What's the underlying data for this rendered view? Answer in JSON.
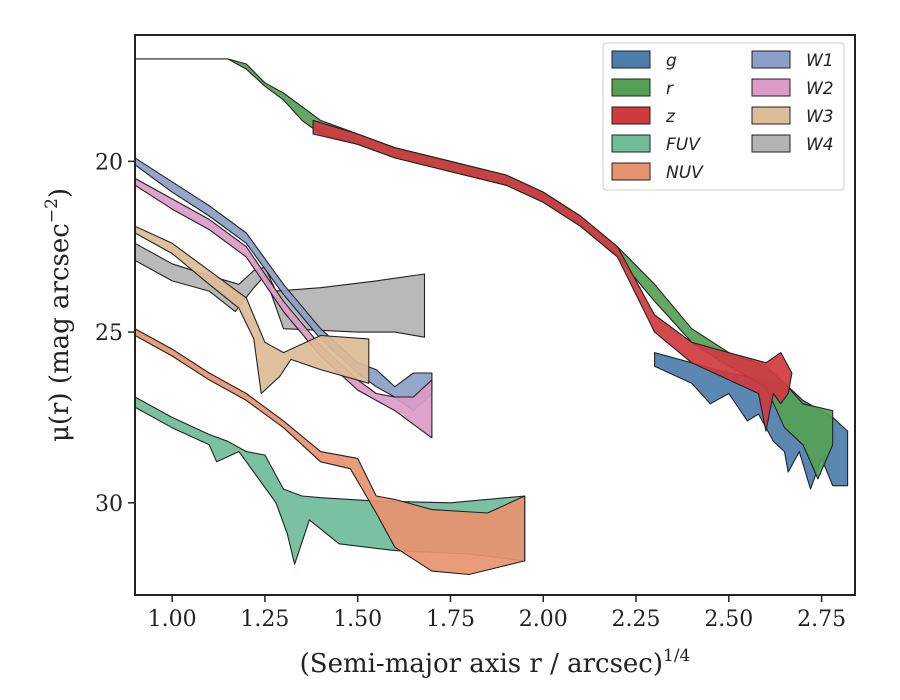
{
  "chart_data": {
    "type": "area",
    "xlabel": "(Semi-major axis r / arcsec)",
    "xlabel_superscript": "1/4",
    "ylabel": "μ(r) (mag arcsec",
    "ylabel_superscript": "−2",
    "ylabel_suffix": ")",
    "xlim": [
      0.9,
      2.84
    ],
    "ylim": [
      32.7,
      16.3
    ],
    "y_inverted": true,
    "x_ticks": [
      1.0,
      1.25,
      1.5,
      1.75,
      2.0,
      2.25,
      2.5,
      2.75
    ],
    "x_tick_labels": [
      "1.00",
      "1.25",
      "1.50",
      "1.75",
      "2.00",
      "2.25",
      "2.50",
      "2.75"
    ],
    "y_ticks": [
      20,
      25,
      30
    ],
    "y_tick_labels": [
      "20",
      "25",
      "30"
    ],
    "grid": false,
    "legend_position": "top-right",
    "legend_columns": 2,
    "series": [
      {
        "name": "W4",
        "color": "#b3b3b3",
        "upper": [
          [
            0.9,
            22.4
          ],
          [
            1.0,
            23.0
          ],
          [
            1.1,
            23.35
          ],
          [
            1.18,
            23.6
          ],
          [
            1.22,
            23.2
          ],
          [
            1.25,
            23.1
          ],
          [
            1.28,
            23.8
          ],
          [
            1.4,
            23.7
          ],
          [
            1.55,
            23.5
          ],
          [
            1.68,
            23.3
          ]
        ],
        "lower": [
          [
            0.9,
            22.9
          ],
          [
            1.0,
            23.5
          ],
          [
            1.1,
            23.8
          ],
          [
            1.17,
            24.4
          ],
          [
            1.22,
            23.7
          ],
          [
            1.25,
            23.35
          ],
          [
            1.3,
            24.9
          ],
          [
            1.5,
            25.0
          ],
          [
            1.6,
            25.0
          ],
          [
            1.68,
            25.15
          ]
        ]
      },
      {
        "name": "g",
        "color": "#4c7eab",
        "upper": [
          [
            2.3,
            25.6
          ],
          [
            2.4,
            25.9
          ],
          [
            2.5,
            26.2
          ],
          [
            2.6,
            26.4
          ],
          [
            2.65,
            26.5
          ],
          [
            2.7,
            27.0
          ],
          [
            2.78,
            27.5
          ],
          [
            2.82,
            27.9
          ]
        ],
        "lower": [
          [
            2.3,
            26.0
          ],
          [
            2.4,
            26.5
          ],
          [
            2.45,
            27.1
          ],
          [
            2.5,
            26.8
          ],
          [
            2.55,
            27.6
          ],
          [
            2.58,
            27.4
          ],
          [
            2.62,
            28.2
          ],
          [
            2.65,
            28.5
          ],
          [
            2.66,
            29.1
          ],
          [
            2.69,
            28.5
          ],
          [
            2.72,
            29.6
          ],
          [
            2.75,
            28.7
          ],
          [
            2.78,
            29.5
          ],
          [
            2.82,
            29.5
          ]
        ]
      },
      {
        "name": "r",
        "color": "#55a055",
        "upper": [
          [
            0.9,
            17.0
          ],
          [
            1.05,
            17.0
          ],
          [
            1.15,
            17.0
          ],
          [
            1.2,
            17.15
          ],
          [
            1.25,
            17.7
          ],
          [
            1.3,
            18.0
          ],
          [
            1.35,
            18.4
          ],
          [
            1.4,
            18.8
          ],
          [
            1.5,
            19.2
          ],
          [
            1.6,
            19.6
          ],
          [
            1.75,
            20.0
          ],
          [
            1.9,
            20.4
          ],
          [
            2.0,
            20.9
          ],
          [
            2.1,
            21.6
          ],
          [
            2.2,
            22.5
          ],
          [
            2.3,
            23.6
          ],
          [
            2.4,
            24.9
          ],
          [
            2.5,
            25.6
          ],
          [
            2.6,
            26.0
          ],
          [
            2.65,
            26.5
          ],
          [
            2.7,
            27.1
          ],
          [
            2.78,
            27.3
          ]
        ],
        "lower": [
          [
            0.9,
            17.0
          ],
          [
            1.05,
            17.0
          ],
          [
            1.15,
            17.0
          ],
          [
            1.2,
            17.3
          ],
          [
            1.25,
            17.8
          ],
          [
            1.3,
            18.2
          ],
          [
            1.35,
            18.8
          ],
          [
            1.4,
            19.2
          ],
          [
            1.5,
            19.5
          ],
          [
            1.6,
            19.9
          ],
          [
            1.75,
            20.3
          ],
          [
            1.9,
            20.7
          ],
          [
            2.0,
            21.2
          ],
          [
            2.1,
            21.9
          ],
          [
            2.2,
            22.8
          ],
          [
            2.3,
            24.1
          ],
          [
            2.4,
            25.3
          ],
          [
            2.5,
            26.0
          ],
          [
            2.6,
            26.6
          ],
          [
            2.65,
            27.8
          ],
          [
            2.7,
            28.3
          ],
          [
            2.74,
            29.3
          ],
          [
            2.78,
            28.3
          ]
        ]
      },
      {
        "name": "z",
        "color": "#cf3a3f",
        "upper": [
          [
            1.38,
            18.8
          ],
          [
            1.5,
            19.2
          ],
          [
            1.6,
            19.6
          ],
          [
            1.75,
            20.0
          ],
          [
            1.9,
            20.4
          ],
          [
            2.0,
            20.9
          ],
          [
            2.1,
            21.6
          ],
          [
            2.2,
            22.5
          ],
          [
            2.3,
            24.5
          ],
          [
            2.4,
            25.3
          ],
          [
            2.5,
            25.6
          ],
          [
            2.6,
            25.9
          ],
          [
            2.64,
            25.6
          ],
          [
            2.67,
            26.2
          ]
        ],
        "lower": [
          [
            1.38,
            19.2
          ],
          [
            1.5,
            19.5
          ],
          [
            1.6,
            19.9
          ],
          [
            1.75,
            20.3
          ],
          [
            1.9,
            20.7
          ],
          [
            2.0,
            21.2
          ],
          [
            2.1,
            21.9
          ],
          [
            2.2,
            22.8
          ],
          [
            2.3,
            25.0
          ],
          [
            2.4,
            25.9
          ],
          [
            2.5,
            26.4
          ],
          [
            2.58,
            26.8
          ],
          [
            2.6,
            27.9
          ],
          [
            2.62,
            26.8
          ],
          [
            2.64,
            27.1
          ],
          [
            2.66,
            26.8
          ],
          [
            2.67,
            26.2
          ]
        ]
      },
      {
        "name": "W1",
        "color": "#8b9fc7",
        "upper": [
          [
            0.9,
            19.9
          ],
          [
            1.0,
            20.6
          ],
          [
            1.1,
            21.3
          ],
          [
            1.2,
            22.1
          ],
          [
            1.3,
            23.6
          ],
          [
            1.4,
            24.9
          ],
          [
            1.5,
            25.9
          ],
          [
            1.55,
            26.1
          ],
          [
            1.6,
            26.6
          ],
          [
            1.65,
            26.2
          ],
          [
            1.7,
            26.2
          ]
        ],
        "lower": [
          [
            0.9,
            20.1
          ],
          [
            1.0,
            20.9
          ],
          [
            1.1,
            21.6
          ],
          [
            1.2,
            22.4
          ],
          [
            1.3,
            23.9
          ],
          [
            1.4,
            25.2
          ],
          [
            1.5,
            26.2
          ],
          [
            1.55,
            26.6
          ],
          [
            1.6,
            26.9
          ],
          [
            1.65,
            27.3
          ],
          [
            1.7,
            26.8
          ]
        ]
      },
      {
        "name": "W2",
        "color": "#dc9ac7",
        "upper": [
          [
            0.9,
            20.5
          ],
          [
            1.0,
            21.1
          ],
          [
            1.1,
            21.7
          ],
          [
            1.2,
            22.5
          ],
          [
            1.3,
            24.1
          ],
          [
            1.4,
            25.4
          ],
          [
            1.5,
            26.4
          ],
          [
            1.55,
            26.8
          ],
          [
            1.6,
            26.9
          ],
          [
            1.65,
            26.9
          ],
          [
            1.7,
            26.4
          ]
        ],
        "lower": [
          [
            0.9,
            20.7
          ],
          [
            1.0,
            21.4
          ],
          [
            1.1,
            22.0
          ],
          [
            1.2,
            22.8
          ],
          [
            1.3,
            24.4
          ],
          [
            1.4,
            25.7
          ],
          [
            1.5,
            26.7
          ],
          [
            1.55,
            27.0
          ],
          [
            1.6,
            27.3
          ],
          [
            1.65,
            27.7
          ],
          [
            1.7,
            28.1
          ]
        ]
      },
      {
        "name": "W3",
        "color": "#ddbc96",
        "upper": [
          [
            0.9,
            21.9
          ],
          [
            1.0,
            22.4
          ],
          [
            1.1,
            23.2
          ],
          [
            1.2,
            24.0
          ],
          [
            1.25,
            25.3
          ],
          [
            1.3,
            25.6
          ],
          [
            1.4,
            25.1
          ],
          [
            1.53,
            25.2
          ]
        ],
        "lower": [
          [
            0.9,
            22.1
          ],
          [
            1.0,
            22.7
          ],
          [
            1.1,
            23.6
          ],
          [
            1.18,
            24.3
          ],
          [
            1.22,
            25.2
          ],
          [
            1.24,
            26.8
          ],
          [
            1.29,
            26.3
          ],
          [
            1.32,
            25.8
          ],
          [
            1.4,
            26.1
          ],
          [
            1.53,
            26.5
          ]
        ]
      },
      {
        "name": "FUV",
        "color": "#6fbc9c",
        "upper": [
          [
            0.9,
            26.9
          ],
          [
            1.0,
            27.5
          ],
          [
            1.1,
            28.0
          ],
          [
            1.15,
            28.2
          ],
          [
            1.2,
            28.5
          ],
          [
            1.25,
            28.6
          ],
          [
            1.3,
            29.6
          ],
          [
            1.35,
            29.8
          ],
          [
            1.4,
            29.85
          ],
          [
            1.55,
            29.95
          ],
          [
            1.75,
            30.0
          ],
          [
            1.95,
            29.8
          ]
        ],
        "lower": [
          [
            0.9,
            27.2
          ],
          [
            1.0,
            27.8
          ],
          [
            1.1,
            28.3
          ],
          [
            1.12,
            28.8
          ],
          [
            1.18,
            28.5
          ],
          [
            1.22,
            29.1
          ],
          [
            1.28,
            30.0
          ],
          [
            1.31,
            30.9
          ],
          [
            1.33,
            31.8
          ],
          [
            1.37,
            30.5
          ],
          [
            1.45,
            31.2
          ],
          [
            1.6,
            31.4
          ],
          [
            1.8,
            31.5
          ],
          [
            1.95,
            31.7
          ]
        ]
      },
      {
        "name": "NUV",
        "color": "#e8936f",
        "upper": [
          [
            0.9,
            24.9
          ],
          [
            1.0,
            25.5
          ],
          [
            1.1,
            26.2
          ],
          [
            1.2,
            26.8
          ],
          [
            1.3,
            27.6
          ],
          [
            1.4,
            28.5
          ],
          [
            1.5,
            28.7
          ],
          [
            1.55,
            29.8
          ],
          [
            1.6,
            29.9
          ],
          [
            1.7,
            30.2
          ],
          [
            1.85,
            30.3
          ],
          [
            1.95,
            29.8
          ]
        ],
        "lower": [
          [
            0.9,
            25.1
          ],
          [
            1.0,
            25.7
          ],
          [
            1.1,
            26.4
          ],
          [
            1.2,
            27.0
          ],
          [
            1.3,
            27.8
          ],
          [
            1.4,
            28.8
          ],
          [
            1.48,
            29.0
          ],
          [
            1.55,
            30.3
          ],
          [
            1.6,
            31.3
          ],
          [
            1.7,
            32.0
          ],
          [
            1.8,
            32.1
          ],
          [
            1.95,
            31.7
          ]
        ]
      }
    ],
    "legend": [
      {
        "name": "g",
        "color": "#4c7eab"
      },
      {
        "name": "r",
        "color": "#55a055"
      },
      {
        "name": "z",
        "color": "#cf3a3f"
      },
      {
        "name": "FUV",
        "color": "#6fbc9c"
      },
      {
        "name": "NUV",
        "color": "#e8936f"
      },
      {
        "name": "W1",
        "color": "#8b9fc7"
      },
      {
        "name": "W2",
        "color": "#dc9ac7"
      },
      {
        "name": "W3",
        "color": "#ddbc96"
      },
      {
        "name": "W4",
        "color": "#b3b3b3"
      }
    ]
  }
}
